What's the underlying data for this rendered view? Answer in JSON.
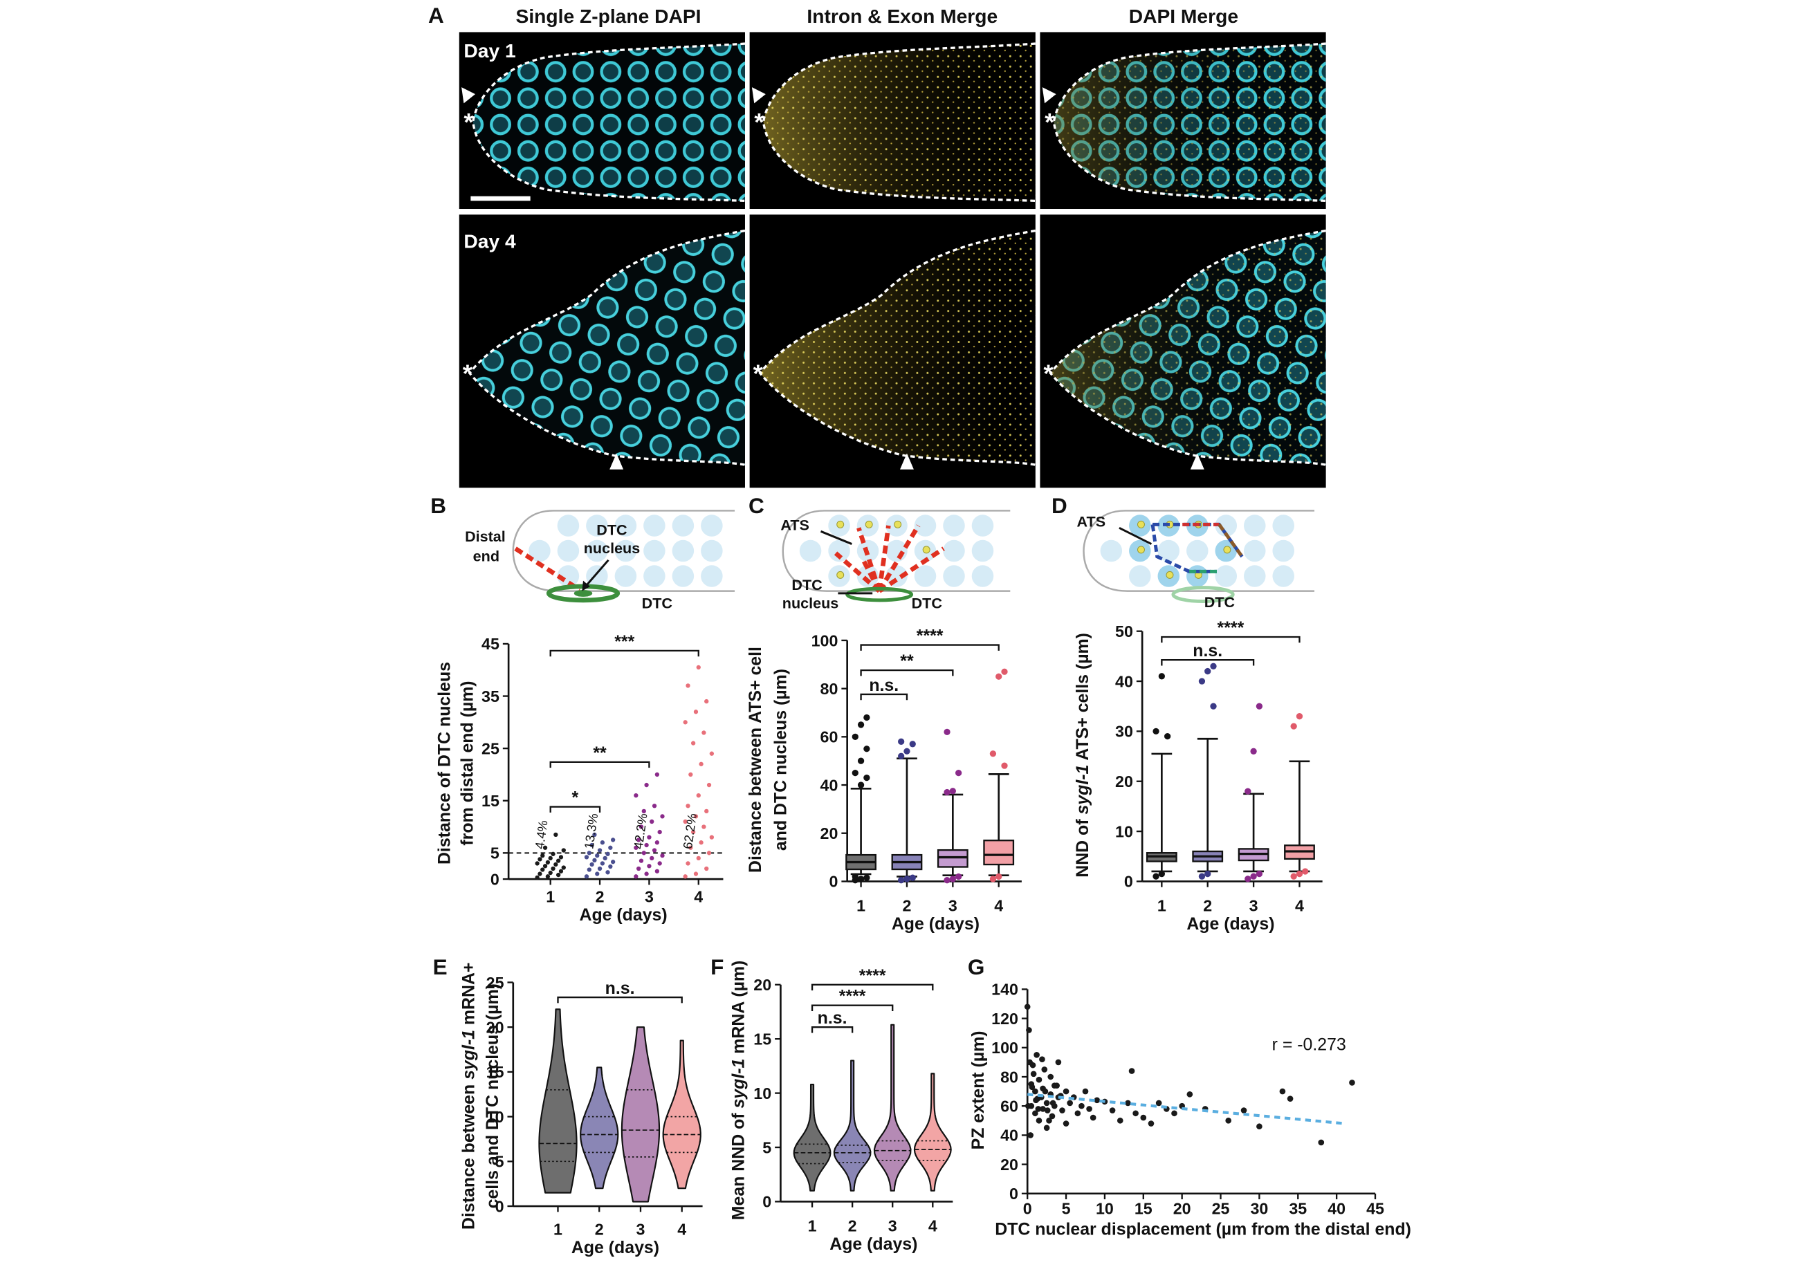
{
  "panel_a": {
    "label": "A",
    "columns": [
      "Single Z-plane DAPI",
      "Intron & Exon Merge",
      "DAPI Merge"
    ],
    "rows": [
      "Day 1",
      "Day 4"
    ],
    "distal_marker": "*"
  },
  "diagrams": {
    "b": {
      "label": "B",
      "distal_end": [
        "Distal",
        "end"
      ],
      "nucleus": [
        "DTC",
        "nucleus"
      ],
      "cell": "DTC"
    },
    "c": {
      "label": "C",
      "ats": "ATS",
      "nucleus": [
        "DTC",
        "nucleus"
      ],
      "cell": "DTC"
    },
    "d": {
      "label": "D",
      "ats": "ATS",
      "cell": "DTC"
    }
  },
  "chart_data": [
    {
      "type": "strip",
      "ylabel": [
        [
          "Distance of DTC nucleus"
        ],
        [
          "from distal end (µm)"
        ]
      ],
      "xlabel": "Age (days)",
      "categories": [
        "1",
        "2",
        "3",
        "4"
      ],
      "ylim": [
        0,
        45
      ],
      "yticks": [
        0,
        5,
        15,
        25,
        35,
        45
      ],
      "threshold": 5,
      "annotations": [
        "4.4%",
        "13.3%",
        "42.2%",
        "62.2%"
      ],
      "brackets": [
        {
          "from": "1",
          "to": "4",
          "label": "***"
        },
        {
          "from": "1",
          "to": "3",
          "label": "**"
        },
        {
          "from": "1",
          "to": "2",
          "label": "*"
        }
      ],
      "series": [
        {
          "color": "#1a1a1a",
          "values": [
            0.3,
            0.5,
            0.8,
            1,
            1.2,
            1.5,
            1.8,
            2,
            2.2,
            2.5,
            2.8,
            3,
            3.2,
            3.5,
            3.8,
            4,
            4.2,
            4.5,
            4.8,
            5.5,
            6,
            8.5
          ]
        },
        {
          "color": "#4a4f8f",
          "values": [
            0.5,
            1,
            1.3,
            1.8,
            2,
            2.4,
            2.8,
            3,
            3.3,
            3.6,
            4,
            4.2,
            4.5,
            4.8,
            5,
            5.5,
            6,
            6.5,
            7,
            7.5,
            8.5
          ]
        },
        {
          "color": "#8a2a8a",
          "values": [
            0.5,
            1,
            1.5,
            2,
            2.5,
            3,
            3.5,
            4,
            4.5,
            5,
            5.5,
            6,
            6.5,
            7,
            7.5,
            8,
            9,
            10,
            11,
            12,
            13,
            14,
            16,
            18,
            20
          ]
        },
        {
          "color": "#e8707a",
          "values": [
            0.5,
            1,
            2,
            3,
            4,
            5,
            6,
            7,
            8,
            9,
            10,
            11,
            12,
            13,
            14,
            16,
            18,
            20,
            22,
            24,
            26,
            28,
            30,
            32,
            34,
            37,
            40.5
          ]
        }
      ]
    },
    {
      "type": "box",
      "ylabel": [
        [
          "Distance between ATS+ cell"
        ],
        [
          "and DTC nucleus (µm)"
        ]
      ],
      "xlabel": "Age (days)",
      "categories": [
        "1",
        "2",
        "3",
        "4"
      ],
      "ylim": [
        0,
        100
      ],
      "yticks": [
        0,
        20,
        40,
        60,
        80,
        100
      ],
      "brackets": [
        {
          "from": "1",
          "to": "4",
          "label": "****"
        },
        {
          "from": "1",
          "to": "3",
          "label": "**"
        },
        {
          "from": "1",
          "to": "2",
          "label": "n.s."
        }
      ],
      "series": [
        {
          "color": "#707070",
          "point_color": "#111111",
          "whisker_low": 3,
          "q1": 5,
          "median": 8,
          "q3": 11,
          "whisker_high": 38.5,
          "outliers": [
            0.5,
            1,
            1.5,
            2,
            40,
            43,
            45,
            50,
            55,
            60,
            65,
            68
          ]
        },
        {
          "color": "#8883b8",
          "point_color": "#3b3a86",
          "whisker_low": 2,
          "q1": 5,
          "median": 8,
          "q3": 11,
          "whisker_high": 51,
          "outliers": [
            0.5,
            1,
            1.5,
            52,
            54,
            57,
            58
          ]
        },
        {
          "color": "#c49bd0",
          "point_color": "#8a2a8a",
          "whisker_low": 2.5,
          "q1": 6,
          "median": 10,
          "q3": 13,
          "whisker_high": 36,
          "outliers": [
            0.5,
            1,
            2,
            37,
            37.5,
            45,
            62
          ]
        },
        {
          "color": "#f2a0a6",
          "point_color": "#e05a6a",
          "whisker_low": 2.5,
          "q1": 7,
          "median": 11,
          "q3": 17,
          "whisker_high": 44.5,
          "outliers": [
            1,
            2,
            48,
            53,
            85,
            87
          ]
        }
      ]
    },
    {
      "type": "box",
      "ylabel": [
        [
          "NND of ",
          "sygl-1",
          " ATS+ cells (µm)"
        ]
      ],
      "xlabel": "Age (days)",
      "categories": [
        "1",
        "2",
        "3",
        "4"
      ],
      "ylim": [
        0,
        50
      ],
      "yticks": [
        0,
        10,
        20,
        30,
        40,
        50
      ],
      "brackets": [
        {
          "from": "1",
          "to": "4",
          "label": "****"
        },
        {
          "from": "1",
          "to": "3",
          "label": "n.s."
        }
      ],
      "series": [
        {
          "color": "#707070",
          "point_color": "#111111",
          "whisker_low": 2,
          "q1": 4,
          "median": 5,
          "q3": 5.7,
          "whisker_high": 25.5,
          "outliers": [
            1,
            1.5,
            29,
            30,
            41
          ]
        },
        {
          "color": "#8883b8",
          "point_color": "#3b3a86",
          "whisker_low": 2,
          "q1": 4,
          "median": 5,
          "q3": 6,
          "whisker_high": 28.5,
          "outliers": [
            1,
            1.5,
            35,
            40,
            42,
            43
          ]
        },
        {
          "color": "#c49bd0",
          "point_color": "#8a2a8a",
          "whisker_low": 2,
          "q1": 4.2,
          "median": 5.5,
          "q3": 6.5,
          "whisker_high": 17.5,
          "outliers": [
            0.5,
            1,
            1.5,
            18,
            26,
            35
          ]
        },
        {
          "color": "#f2a0a6",
          "point_color": "#e05a6a",
          "whisker_low": 2,
          "q1": 4.5,
          "median": 6,
          "q3": 7.2,
          "whisker_high": 24,
          "outliers": [
            1,
            1.5,
            2,
            31,
            33
          ]
        }
      ]
    },
    {
      "type": "violin",
      "panel": "E",
      "ylabel": [
        [
          "Distance between ",
          "sygl-1",
          " mRNA+"
        ],
        [
          "cells and DTC nucleus (µm)"
        ]
      ],
      "xlabel": "Age (days)",
      "categories": [
        "1",
        "2",
        "3",
        "4"
      ],
      "ylim": [
        0,
        25
      ],
      "yticks": [
        0,
        5,
        10,
        15,
        20,
        25
      ],
      "brackets": [
        {
          "from": "1",
          "to": "4",
          "label": "n.s."
        }
      ],
      "series": [
        {
          "color": "#6e6e6e",
          "min": 1.5,
          "q1": 5,
          "median": 7,
          "q3": 13,
          "max": 22
        },
        {
          "color": "#8a86b5",
          "min": 2,
          "q1": 6,
          "median": 8,
          "q3": 10,
          "max": 15.5
        },
        {
          "color": "#b58ab5",
          "min": 0.5,
          "q1": 5.5,
          "median": 8.5,
          "q3": 13,
          "max": 20
        },
        {
          "color": "#f2a5a5",
          "min": 2,
          "q1": 6,
          "median": 8,
          "q3": 10,
          "max": 18.5
        }
      ]
    },
    {
      "type": "violin",
      "panel": "F",
      "ylabel": [
        [
          "Mean NND of ",
          "sygl-1",
          " mRNA (µm)"
        ]
      ],
      "xlabel": "Age (days)",
      "categories": [
        "1",
        "2",
        "3",
        "4"
      ],
      "ylim": [
        0,
        20
      ],
      "yticks": [
        0,
        5,
        10,
        15,
        20
      ],
      "brackets": [
        {
          "from": "1",
          "to": "4",
          "label": "****"
        },
        {
          "from": "1",
          "to": "3",
          "label": "****"
        },
        {
          "from": "1",
          "to": "2",
          "label": "n.s."
        }
      ],
      "series": [
        {
          "color": "#6e6e6e",
          "min": 1,
          "q1": 3.5,
          "median": 4.5,
          "q3": 5.3,
          "max": 10.8
        },
        {
          "color": "#8a86b5",
          "min": 1,
          "q1": 3.6,
          "median": 4.5,
          "q3": 5.2,
          "max": 13
        },
        {
          "color": "#b58ab5",
          "min": 1,
          "q1": 3.8,
          "median": 4.7,
          "q3": 5.6,
          "max": 16.3
        },
        {
          "color": "#f2a5a5",
          "min": 1,
          "q1": 3.8,
          "median": 4.8,
          "q3": 5.6,
          "max": 11.8
        }
      ]
    },
    {
      "type": "scatter",
      "panel": "G",
      "ylabel": [
        [
          "PZ extent (µm)"
        ]
      ],
      "xlabel": "DTC nuclear displacement (µm from the distal end)",
      "annotation": "r = -0.273",
      "color": "#1a1a1a",
      "xlim": [
        0,
        45
      ],
      "xticks": [
        0,
        5,
        10,
        15,
        20,
        25,
        30,
        35,
        40,
        45
      ],
      "ylim": [
        0,
        140
      ],
      "yticks": [
        0,
        20,
        40,
        60,
        80,
        100,
        120,
        140
      ],
      "x": [
        0,
        0.2,
        0.3,
        0.5,
        0.5,
        0.8,
        1,
        1,
        1.2,
        1.5,
        1.5,
        1.8,
        2,
        2,
        2.2,
        2.5,
        2.5,
        3,
        3,
        3.2,
        3.5,
        3.5,
        4,
        4,
        4.5,
        5,
        5,
        5.5,
        6,
        6.5,
        7,
        7.5,
        8,
        8.5,
        9,
        10,
        11,
        12,
        13,
        13.5,
        14,
        15,
        16,
        17,
        18,
        19,
        20,
        21,
        23,
        26,
        28,
        30,
        33,
        34,
        38,
        42,
        0.4,
        0.7,
        1.1,
        1.4,
        1.9,
        2.3,
        2.8,
        3.3,
        3.8,
        4.3,
        0.1,
        0.6,
        1.3,
        2.6
      ],
      "y": [
        128,
        112,
        90,
        75,
        60,
        82,
        70,
        55,
        95,
        78,
        50,
        66,
        72,
        58,
        85,
        62,
        45,
        80,
        68,
        53,
        74,
        60,
        90,
        66,
        57,
        70,
        48,
        62,
        66,
        55,
        60,
        70,
        58,
        52,
        64,
        63,
        57,
        50,
        62,
        84,
        55,
        52,
        48,
        62,
        58,
        55,
        60,
        68,
        58,
        50,
        57,
        46,
        70,
        65,
        35,
        76,
        40,
        88,
        64,
        58,
        92,
        70,
        50,
        62,
        74,
        67,
        60,
        73,
        65,
        57
      ],
      "trend": {
        "color": "#5aaee0",
        "x": [
          0,
          41
        ],
        "y": [
          68,
          48
        ]
      }
    }
  ]
}
